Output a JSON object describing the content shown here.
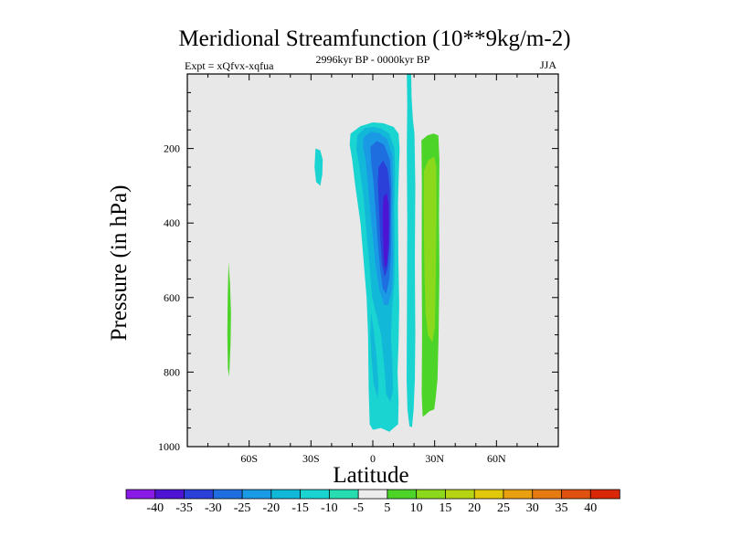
{
  "chart_data": {
    "type": "contour",
    "title": "Meridional Streamfunction (10**9kg/m-2)",
    "subtitle_left": "Expt = xQfvx-xqfua",
    "subtitle_center": "2996kyr BP - 0000kyr BP",
    "subtitle_right": "JJA",
    "xlabel": "Latitude",
    "ylabel": "Pressure (in hPa)",
    "xlim": [
      -90,
      90
    ],
    "ylim": [
      1000,
      0
    ],
    "x_ticks": [
      {
        "value": -60,
        "label": "60S"
      },
      {
        "value": -30,
        "label": "30S"
      },
      {
        "value": 0,
        "label": "0"
      },
      {
        "value": 30,
        "label": "30N"
      },
      {
        "value": 60,
        "label": "60N"
      }
    ],
    "y_ticks": [
      {
        "value": 200,
        "label": "200"
      },
      {
        "value": 400,
        "label": "400"
      },
      {
        "value": 600,
        "label": "600"
      },
      {
        "value": 800,
        "label": "800"
      },
      {
        "value": 1000,
        "label": "1000"
      }
    ],
    "contour_levels": [
      "-40",
      "-35",
      "-30",
      "-25",
      "-20",
      "-15",
      "-10",
      "-5",
      "5",
      "10",
      "15",
      "20",
      "25",
      "30",
      "35",
      "40"
    ],
    "level_colors": [
      "#8a1ae6",
      "#4e14d4",
      "#2a40d8",
      "#1f6ee0",
      "#1a9ae4",
      "#12b8d8",
      "#1ad4d2",
      "#26dcb0",
      "#ececec",
      "#4cd428",
      "#8cd81c",
      "#b6d414",
      "#e2c80a",
      "#e8a010",
      "#e67a12",
      "#e0500e",
      "#d82808"
    ],
    "background_color": "#e8e8e8",
    "regions": [
      {
        "name": "tropical-negative-cell",
        "level_range": "-10 to -5",
        "lat": [
          -10,
          13
        ],
        "pressure": [
          140,
          960
        ]
      },
      {
        "name": "tropical-negative-core",
        "level_range": "-35 to -30",
        "lat": [
          5,
          11
        ],
        "pressure": [
          340,
          520
        ]
      },
      {
        "name": "subtropical-positive-cell",
        "level_range": "5 to 10",
        "lat": [
          22,
          32
        ],
        "pressure": [
          160,
          920
        ]
      },
      {
        "name": "southern-small-negative",
        "level_range": "-10 to -5",
        "lat": [
          -28,
          -24
        ],
        "pressure": [
          200,
          300
        ]
      },
      {
        "name": "southern-small-positive",
        "level_range": "5 to 10",
        "lat": [
          -70,
          -68
        ],
        "pressure": [
          505,
          810
        ]
      },
      {
        "name": "equatorial-narrow-column",
        "level_range": "-10 to -5",
        "lat": [
          16,
          20
        ],
        "pressure": [
          0,
          950
        ]
      }
    ]
  }
}
